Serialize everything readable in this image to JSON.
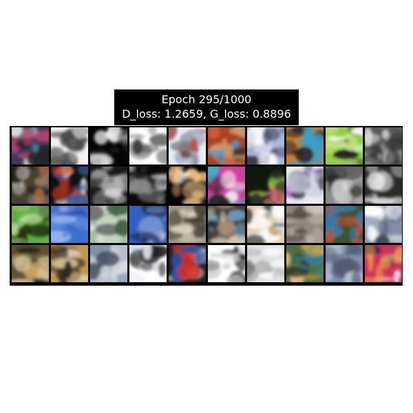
{
  "figure": {
    "title_line1": "Epoch 295/1000",
    "title_line2": "D_loss: 1.2659, G_loss: 0.8896"
  },
  "grid": {
    "rows": 4,
    "cols": 10,
    "tiles": [
      {
        "palette": [
          "#3a3a5a",
          "#d04070",
          "#3fb0c0",
          "#e0e0e0",
          "#222222"
        ]
      },
      {
        "palette": [
          "#f2f2f2",
          "#6a6a6a",
          "#2a2a2a",
          "#bdbdbd",
          "#4a4a4a"
        ]
      },
      {
        "palette": [
          "#050505",
          "#ededed",
          "#7a7a7a",
          "#222222",
          "#c8c8c8"
        ]
      },
      {
        "palette": [
          "#ffffff",
          "#cfcfcf",
          "#3a3a3a",
          "#9a9a9a",
          "#f5f5f5"
        ]
      },
      {
        "palette": [
          "#e8eef5",
          "#7a7a7a",
          "#b85050",
          "#3a3a3a",
          "#a9b7c9"
        ]
      },
      {
        "palette": [
          "#b04020",
          "#40a0d0",
          "#e07040",
          "#403020",
          "#d0a070"
        ]
      },
      {
        "palette": [
          "#a8b8d8",
          "#ffffff",
          "#5a5a7a",
          "#e0e0f0",
          "#303040"
        ]
      },
      {
        "palette": [
          "#d08030",
          "#30a0d0",
          "#d03070",
          "#e0c040",
          "#2a2a2a"
        ]
      },
      {
        "palette": [
          "#90d040",
          "#ffffff",
          "#3a6020",
          "#c0e080",
          "#202020"
        ]
      },
      {
        "palette": [
          "#5a5a5a",
          "#dcdcdc",
          "#2a2a2a",
          "#9c9c9c",
          "#f0f0f0"
        ]
      },
      {
        "palette": [
          "#4a4030",
          "#c07040",
          "#808080",
          "#d0d0c0",
          "#202020"
        ]
      },
      {
        "palette": [
          "#101010",
          "#e06030",
          "#f0f0f0",
          "#3060a0",
          "#a03020"
        ]
      },
      {
        "palette": [
          "#1a1a1a",
          "#d8d8d8",
          "#707070",
          "#a8a8a8",
          "#404040"
        ]
      },
      {
        "palette": [
          "#0a0a0a",
          "#e8e8e8",
          "#8a8a8a",
          "#c0c0c0",
          "#303030"
        ]
      },
      {
        "palette": [
          "#050505",
          "#f0c080",
          "#ffffff",
          "#d09040",
          "#303030"
        ]
      },
      {
        "palette": [
          "#d040a0",
          "#40b0d0",
          "#70a040",
          "#f0f0f0",
          "#202020"
        ]
      },
      {
        "palette": [
          "#101810",
          "#40a040",
          "#e06080",
          "#c0c040",
          "#303030"
        ]
      },
      {
        "palette": [
          "#e8e8f0",
          "#a040c0",
          "#3a3a4a",
          "#c0c0d0",
          "#606070"
        ]
      },
      {
        "palette": [
          "#8a8a8a",
          "#e0e0e0",
          "#202020",
          "#c0c0c0",
          "#505050"
        ]
      },
      {
        "palette": [
          "#2a2a2a",
          "#d8d8d8",
          "#6a6a6a",
          "#b0b0b0",
          "#f0f0f0"
        ]
      },
      {
        "palette": [
          "#60b040",
          "#3a6a20",
          "#c0e0a0",
          "#203010",
          "#90c060"
        ]
      },
      {
        "palette": [
          "#4070d0",
          "#6090e0",
          "#2040a0",
          "#a0c0f0",
          "#3050b0"
        ]
      },
      {
        "palette": [
          "#a0c0a0",
          "#d0e0d0",
          "#406040",
          "#707070",
          "#e0e0e0"
        ]
      },
      {
        "palette": [
          "#3060c0",
          "#1a2a50",
          "#7090d0",
          "#d0d0e0",
          "#203060"
        ]
      },
      {
        "palette": [
          "#a09880",
          "#c8c0a8",
          "#605848",
          "#e0d8c0",
          "#404030"
        ]
      },
      {
        "palette": [
          "#3a4040",
          "#c0a080",
          "#70a0c0",
          "#e0d0b0",
          "#202020"
        ]
      },
      {
        "palette": [
          "#e0d0b0",
          "#ffffff",
          "#6080a0",
          "#c0a070",
          "#404040"
        ]
      },
      {
        "palette": [
          "#908880",
          "#b0a8a0",
          "#605850",
          "#d0c8c0",
          "#403830"
        ]
      },
      {
        "palette": [
          "#405030",
          "#c05030",
          "#3080b0",
          "#e0c080",
          "#202010"
        ]
      },
      {
        "palette": [
          "#8090a8",
          "#e0e8f0",
          "#404858",
          "#b0c0d0",
          "#ffffff"
        ]
      },
      {
        "palette": [
          "#605030",
          "#c0a060",
          "#202010",
          "#d0c090",
          "#807050"
        ]
      },
      {
        "palette": [
          "#c09850",
          "#ffffff",
          "#302820",
          "#806040",
          "#e0d0a0"
        ]
      },
      {
        "palette": [
          "#b8c0d0",
          "#8090a8",
          "#e0e4ec",
          "#404858",
          "#d0d4dc"
        ]
      },
      {
        "palette": [
          "#ffffff",
          "#202020",
          "#c0c8d8",
          "#6a6a6a",
          "#e8ecf0"
        ]
      },
      {
        "palette": [
          "#202020",
          "#e03020",
          "#f0f0f0",
          "#3050a0",
          "#805040"
        ]
      },
      {
        "palette": [
          "#ffffff",
          "#101010",
          "#d0d0d0",
          "#6a6a6a",
          "#f0f0f0"
        ]
      },
      {
        "palette": [
          "#e0e0e0",
          "#909090",
          "#ffffff",
          "#505050",
          "#c0c0c0"
        ]
      },
      {
        "palette": [
          "#507040",
          "#c0a040",
          "#3080a0",
          "#e0c080",
          "#303020"
        ]
      },
      {
        "palette": [
          "#8090b0",
          "#b0b8d0",
          "#505870",
          "#d0d8e8",
          "#606880"
        ]
      },
      {
        "palette": [
          "#d03060",
          "#3050c0",
          "#ffffff",
          "#f0a040",
          "#202040"
        ]
      }
    ]
  }
}
